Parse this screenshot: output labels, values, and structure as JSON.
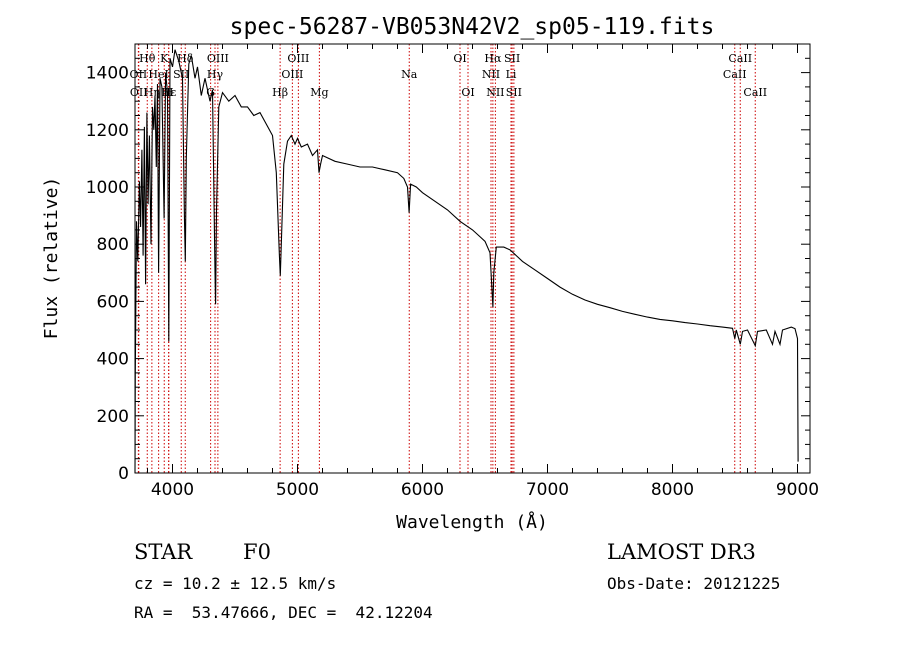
{
  "chart_data": {
    "type": "line",
    "title": "spec-56287-VB053N42V2_sp05-119.fits",
    "xlabel": "Wavelength (Å)",
    "ylabel": "Flux (relative)",
    "xlim": [
      3700,
      9100
    ],
    "ylim": [
      0,
      1500
    ],
    "x_ticks": [
      4000,
      5000,
      6000,
      7000,
      8000,
      9000
    ],
    "y_ticks": [
      0,
      200,
      400,
      600,
      800,
      1000,
      1200,
      1400
    ],
    "grid": false,
    "series": [
      {
        "name": "spectrum",
        "points": [
          [
            3700,
            0
          ],
          [
            3702,
            350
          ],
          [
            3712,
            880
          ],
          [
            3722,
            740
          ],
          [
            3735,
            1020
          ],
          [
            3745,
            860
          ],
          [
            3755,
            1130
          ],
          [
            3765,
            760
          ],
          [
            3775,
            1210
          ],
          [
            3785,
            660
          ],
          [
            3795,
            1260
          ],
          [
            3805,
            940
          ],
          [
            3815,
            1180
          ],
          [
            3828,
            800
          ],
          [
            3840,
            1280
          ],
          [
            3850,
            1200
          ],
          [
            3860,
            1320
          ],
          [
            3870,
            1070
          ],
          [
            3880,
            1360
          ],
          [
            3889,
            700
          ],
          [
            3900,
            1380
          ],
          [
            3915,
            1350
          ],
          [
            3933,
            890
          ],
          [
            3945,
            1400
          ],
          [
            3960,
            1330
          ],
          [
            3970,
            460
          ],
          [
            3980,
            1450
          ],
          [
            4000,
            1420
          ],
          [
            4020,
            1480
          ],
          [
            4050,
            1440
          ],
          [
            4080,
            1380
          ],
          [
            4095,
            900
          ],
          [
            4102,
            740
          ],
          [
            4110,
            1100
          ],
          [
            4130,
            1430
          ],
          [
            4150,
            1460
          ],
          [
            4180,
            1380
          ],
          [
            4200,
            1420
          ],
          [
            4230,
            1320
          ],
          [
            4260,
            1380
          ],
          [
            4300,
            1300
          ],
          [
            4320,
            1340
          ],
          [
            4340,
            700
          ],
          [
            4345,
            590
          ],
          [
            4352,
            920
          ],
          [
            4370,
            1280
          ],
          [
            4400,
            1330
          ],
          [
            4450,
            1300
          ],
          [
            4500,
            1320
          ],
          [
            4550,
            1280
          ],
          [
            4600,
            1280
          ],
          [
            4650,
            1250
          ],
          [
            4700,
            1260
          ],
          [
            4750,
            1220
          ],
          [
            4800,
            1180
          ],
          [
            4830,
            1050
          ],
          [
            4855,
            760
          ],
          [
            4862,
            690
          ],
          [
            4870,
            800
          ],
          [
            4890,
            1080
          ],
          [
            4920,
            1160
          ],
          [
            4950,
            1180
          ],
          [
            4980,
            1150
          ],
          [
            5000,
            1170
          ],
          [
            5030,
            1140
          ],
          [
            5080,
            1150
          ],
          [
            5120,
            1110
          ],
          [
            5160,
            1130
          ],
          [
            5172,
            1050
          ],
          [
            5185,
            1080
          ],
          [
            5200,
            1110
          ],
          [
            5300,
            1090
          ],
          [
            5400,
            1080
          ],
          [
            5500,
            1070
          ],
          [
            5600,
            1070
          ],
          [
            5700,
            1060
          ],
          [
            5800,
            1050
          ],
          [
            5850,
            1030
          ],
          [
            5880,
            1000
          ],
          [
            5893,
            910
          ],
          [
            5905,
            1010
          ],
          [
            5950,
            1000
          ],
          [
            6000,
            980
          ],
          [
            6100,
            950
          ],
          [
            6200,
            920
          ],
          [
            6300,
            880
          ],
          [
            6400,
            850
          ],
          [
            6450,
            830
          ],
          [
            6500,
            810
          ],
          [
            6540,
            770
          ],
          [
            6556,
            640
          ],
          [
            6563,
            580
          ],
          [
            6570,
            700
          ],
          [
            6590,
            790
          ],
          [
            6650,
            790
          ],
          [
            6700,
            780
          ],
          [
            6750,
            760
          ],
          [
            6800,
            740
          ],
          [
            6900,
            710
          ],
          [
            7000,
            680
          ],
          [
            7100,
            650
          ],
          [
            7200,
            625
          ],
          [
            7300,
            605
          ],
          [
            7400,
            590
          ],
          [
            7500,
            578
          ],
          [
            7600,
            565
          ],
          [
            7700,
            555
          ],
          [
            7800,
            545
          ],
          [
            7900,
            537
          ],
          [
            8000,
            532
          ],
          [
            8100,
            526
          ],
          [
            8200,
            521
          ],
          [
            8300,
            515
          ],
          [
            8400,
            510
          ],
          [
            8480,
            506
          ],
          [
            8498,
            470
          ],
          [
            8510,
            500
          ],
          [
            8542,
            450
          ],
          [
            8560,
            495
          ],
          [
            8600,
            500
          ],
          [
            8662,
            445
          ],
          [
            8680,
            495
          ],
          [
            8750,
            500
          ],
          [
            8800,
            450
          ],
          [
            8820,
            495
          ],
          [
            8860,
            450
          ],
          [
            8880,
            500
          ],
          [
            8950,
            510
          ],
          [
            8980,
            505
          ],
          [
            9000,
            470
          ],
          [
            9005,
            40
          ]
        ]
      }
    ],
    "line_ids": [
      {
        "label": "Hθ",
        "wavelength": 3798,
        "row": 1
      },
      {
        "label": "OII",
        "wavelength": 3727,
        "row": 2
      },
      {
        "label": "OII",
        "wavelength": 3730,
        "row": 3
      },
      {
        "label": "Hη",
        "wavelength": 3835,
        "row": 3
      },
      {
        "label": "HeI",
        "wavelength": 3889,
        "row": 2
      },
      {
        "label": "K",
        "wavelength": 3934,
        "row": 1
      },
      {
        "label": "H",
        "wavelength": 3969,
        "row": 3
      },
      {
        "label": "Hε",
        "wavelength": 3970,
        "row": 3
      },
      {
        "label": "Hδ",
        "wavelength": 4102,
        "row": 1
      },
      {
        "label": "SII",
        "wavelength": 4070,
        "row": 2
      },
      {
        "label": "OIII",
        "wavelength": 4363,
        "row": 1
      },
      {
        "label": "Hγ",
        "wavelength": 4340,
        "row": 2
      },
      {
        "label": "G",
        "wavelength": 4305,
        "row": 3
      },
      {
        "label": "OIII",
        "wavelength": 5007,
        "row": 1
      },
      {
        "label": "OIII",
        "wavelength": 4959,
        "row": 2
      },
      {
        "label": "Hβ",
        "wavelength": 4861,
        "row": 3
      },
      {
        "label": "Mg",
        "wavelength": 5175,
        "row": 3
      },
      {
        "label": "Na",
        "wavelength": 5894,
        "row": 2
      },
      {
        "label": "OI",
        "wavelength": 6300,
        "row": 1
      },
      {
        "label": "OI",
        "wavelength": 6364,
        "row": 3
      },
      {
        "label": "Hα",
        "wavelength": 6563,
        "row": 1
      },
      {
        "label": "NII",
        "wavelength": 6548,
        "row": 2
      },
      {
        "label": "NII",
        "wavelength": 6583,
        "row": 3
      },
      {
        "label": "SII",
        "wavelength": 6717,
        "row": 1
      },
      {
        "label": "Li",
        "wavelength": 6708,
        "row": 2
      },
      {
        "label": "SII",
        "wavelength": 6731,
        "row": 3
      },
      {
        "label": "CaII",
        "wavelength": 8542,
        "row": 1
      },
      {
        "label": "CaII",
        "wavelength": 8498,
        "row": 2
      },
      {
        "label": "CaII",
        "wavelength": 8662,
        "row": 3
      }
    ],
    "line_marker_color": "#cc0000"
  },
  "info": {
    "object_class": "STAR",
    "subclass": "F0",
    "survey": "LAMOST DR3",
    "redshift_text": "cz = 10.2 ± 12.5 km/s",
    "obs_date": "Obs-Date: 20121225",
    "coordinates": "RA =  53.47666, DEC =  42.12204"
  }
}
